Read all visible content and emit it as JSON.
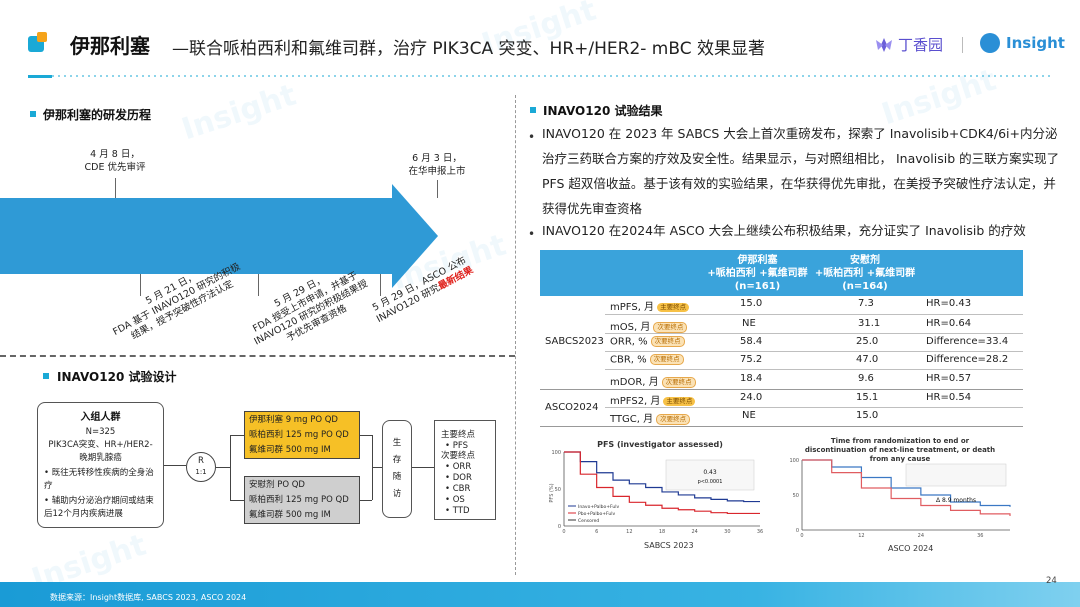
{
  "header": {
    "title": "伊那利塞",
    "subtitle": "—联合哌柏西利和氟维司群，治疗 PIK3CA 突变、HR+/HER2- mBC 效果显著",
    "brand_dxy": "丁香园",
    "brand_insight": "Insight"
  },
  "left": {
    "history_title": "伊那利塞的研发历程",
    "timeline": {
      "top_events": [
        {
          "date": "4 月 8 日，",
          "text": "CDE 优先审评"
        },
        {
          "date": "6 月 3 日，",
          "text": "在华申报上市"
        }
      ],
      "bottom_events": [
        {
          "line1": "5 月 21 日，",
          "line2": "FDA 基于 INAVO120 研究的积极",
          "line3": "结果，授予突破性疗法认定"
        },
        {
          "line1": "5 月 29 日，",
          "line2": "FDA 授受上市申请，并基于",
          "line3": "INAVO120 研究的积极结果授",
          "line4": "予优先审查资格"
        },
        {
          "line1": "5 月 29 日，ASCO 公布",
          "line2": "INAVO120 研究",
          "line2_red": "最新结果"
        }
      ]
    },
    "design_title": "INAVO120 试验设计",
    "design": {
      "population_title": "入组人群",
      "population_lines": [
        "N=325",
        "PIK3CA突变、HR+/HER2-",
        "晚期乳腺癌"
      ],
      "population_bullets": [
        "既往无转移性疾病的全身治疗",
        "辅助内分泌治疗期间或结束后12个月内疾病进展"
      ],
      "randomization": "R",
      "ratio": "1:1",
      "arm1": [
        "伊那利塞 9 mg PO QD",
        "哌柏西利 125 mg PO QD",
        "氟维司群 500 mg IM"
      ],
      "arm2": [
        "安慰剂 PO QD",
        "哌柏西利 125 mg PO QD",
        "氟维司群 500 mg IM"
      ],
      "followup": "生存随访",
      "endpoints_primary": "主要终点",
      "endpoints_primary_list": [
        "PFS"
      ],
      "endpoints_secondary": "次要终点",
      "endpoints_secondary_list": [
        "ORR",
        "DOR",
        "CBR",
        "OS",
        "TTD"
      ]
    }
  },
  "right": {
    "results_title": "INAVO120 试验结果",
    "bullets": [
      "INAVO120 在 2023 年 SABCS 大会上首次重磅发布，探索了 Inavolisib+CDK4/6i+内分泌治疗三药联合方案的疗效及安全性。结果显示，与对照组相比， Inavolisib 的三联方案实现了 PFS 超双倍收益。基于该有效的实验结果，在华获得优先审批，在美授予突破性疗法认定，并获得优先审查资格",
      "INAVO120 在2024年 ASCO 大会上继续公布积极结果，充分证实了 Inavolisib 的疗效"
    ],
    "table": {
      "col1": [
        "伊那利塞",
        "+哌柏西利 +氟维司群",
        "(n=161)"
      ],
      "col2": [
        "安慰剂",
        "+哌柏西利 +氟维司群",
        "(n=164)"
      ],
      "groups": [
        {
          "name": "SABCS2023",
          "rows": [
            {
              "metric": "mPFS, 月",
              "tag": "主要终点",
              "tag_type": "primary",
              "a": "15.0",
              "b": "7.3",
              "c": "HR=0.43"
            },
            {
              "metric": "mOS, 月",
              "tag": "次要终点",
              "tag_type": "secondary",
              "a": "NE",
              "b": "31.1",
              "c": "HR=0.64"
            },
            {
              "metric": "ORR, %",
              "tag": "次要终点",
              "tag_type": "secondary",
              "a": "58.4",
              "b": "25.0",
              "c": "Difference=33.4"
            },
            {
              "metric": "CBR, %",
              "tag": "次要终点",
              "tag_type": "secondary",
              "a": "75.2",
              "b": "47.0",
              "c": "Difference=28.2"
            },
            {
              "metric": "mDOR, 月",
              "tag": "次要终点",
              "tag_type": "secondary",
              "a": "18.4",
              "b": "9.6",
              "c": "HR=0.57"
            }
          ]
        },
        {
          "name": "ASCO2024",
          "rows": [
            {
              "metric": "mPFS2, 月",
              "tag": "主要终点",
              "tag_type": "primary",
              "a": "24.0",
              "b": "15.1",
              "c": "HR=0.54"
            },
            {
              "metric": "TTGC, 月",
              "tag": "次要终点",
              "tag_type": "secondary",
              "a": "NE",
              "b": "15.0",
              "c": ""
            }
          ]
        }
      ]
    },
    "charts": [
      {
        "title": "PFS (investigator assessed)",
        "caption": "SABCS 2023",
        "ylabel": "PFS (%)",
        "legend": [
          "Inavo+Palbo+Fulv",
          "Pbo+Palbo+Fulv",
          "Censored"
        ],
        "stat_hr": "0.43",
        "stat_p": "p<0.0001",
        "colors": {
          "inavo": "#1f3a93",
          "pbo": "#d9262c"
        }
      },
      {
        "title": "Time from randomization to end or discontinuation of next-line treatment, or death from any cause",
        "caption": "ASCO 2024",
        "annotation": "Δ 8.9 months",
        "colors": {
          "inavo": "#3b78c4",
          "pbo": "#e05c60"
        }
      }
    ]
  },
  "chart_data": [
    {
      "type": "line",
      "title": "PFS (investigator assessed)",
      "ylabel": "PFS (%)",
      "xlabel": "",
      "ylim": [
        0,
        100
      ],
      "xlim": [
        0,
        36
      ],
      "x": [
        0,
        3,
        6,
        9,
        12,
        15,
        18,
        21,
        24,
        27,
        30,
        33,
        36
      ],
      "series": [
        {
          "name": "Inavo+Palbo+Fulv",
          "values": [
            100,
            87,
            72,
            62,
            57,
            52,
            46,
            42,
            38,
            36,
            34,
            33,
            33
          ]
        },
        {
          "name": "Pbo+Palbo+Fulv",
          "values": [
            100,
            70,
            52,
            40,
            32,
            28,
            24,
            22,
            20,
            18,
            17,
            17,
            17
          ]
        }
      ]
    },
    {
      "type": "line",
      "title": "Time from randomization to end or discontinuation of next-line treatment, or death from any cause",
      "xlabel": "",
      "ylim": [
        0,
        100
      ],
      "xlim": [
        0,
        42
      ],
      "x": [
        0,
        6,
        12,
        18,
        24,
        30,
        36,
        42
      ],
      "series": [
        {
          "values": [
            100,
            90,
            75,
            60,
            50,
            40,
            35,
            33
          ]
        },
        {
          "values": [
            100,
            82,
            60,
            45,
            35,
            28,
            23,
            20
          ]
        }
      ]
    }
  ],
  "footer": {
    "source": "数据来源：Insight数据库, SABCS 2023, ASCO 2024",
    "page": "24"
  },
  "watermark": "Insight"
}
